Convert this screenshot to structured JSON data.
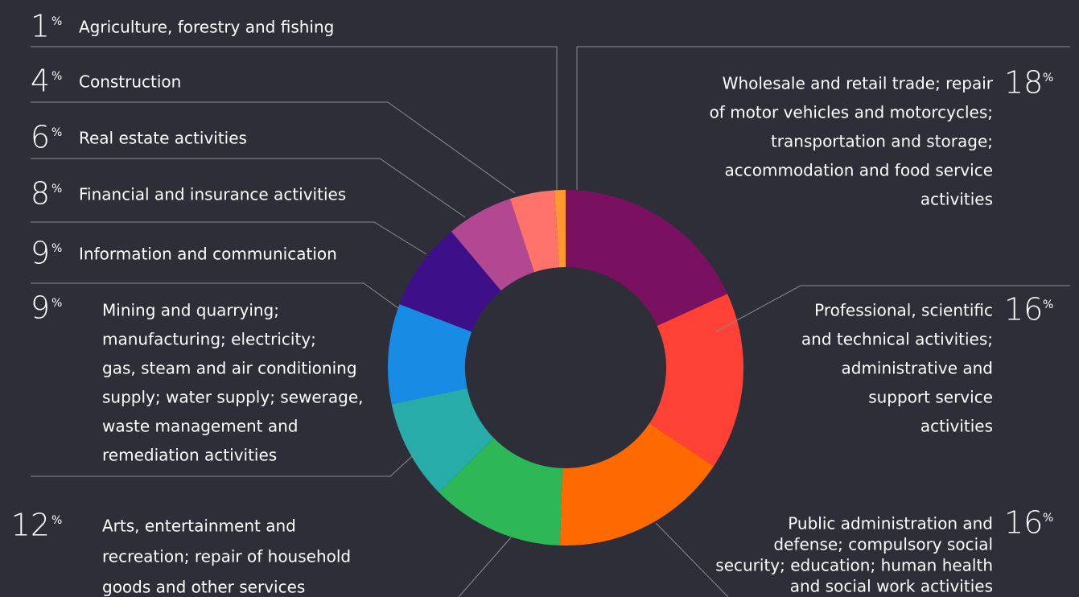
{
  "chart_data": {
    "type": "donut",
    "unit": "%",
    "categories": [
      [
        "Wholesale and retail trade; repair",
        "of motor vehicles and motorcycles;",
        "transportation and storage;",
        "accommodation and food service",
        "activities"
      ],
      [
        "Professional, scientific",
        "and technical activities;",
        "administrative and",
        "support service",
        "activities"
      ],
      [
        "Public administration and",
        "defense; compulsory social",
        "security; education; human health",
        "and social work activities"
      ],
      [
        "Arts, entertainment and",
        "recreation; repair of household",
        "goods and other services"
      ],
      [
        "Mining and quarrying;",
        "manufacturing; electricity;",
        "gas, steam and air conditioning",
        "supply; water supply; sewerage,",
        "waste management and",
        "remediation activities"
      ],
      [
        "Information and communication"
      ],
      [
        "Financial and insurance activities"
      ],
      [
        "Real estate activities"
      ],
      [
        "Construction"
      ],
      [
        "Agriculture, forestry and fishing"
      ]
    ],
    "values": [
      18,
      16,
      16,
      12,
      9,
      9,
      8,
      6,
      4,
      1
    ],
    "colors": [
      "#7a1060",
      "#ff4136",
      "#ff6a00",
      "#2db757",
      "#27acaa",
      "#188ce5",
      "#3d108a",
      "#b14891",
      "#ff736a",
      "#ff9831"
    ]
  }
}
